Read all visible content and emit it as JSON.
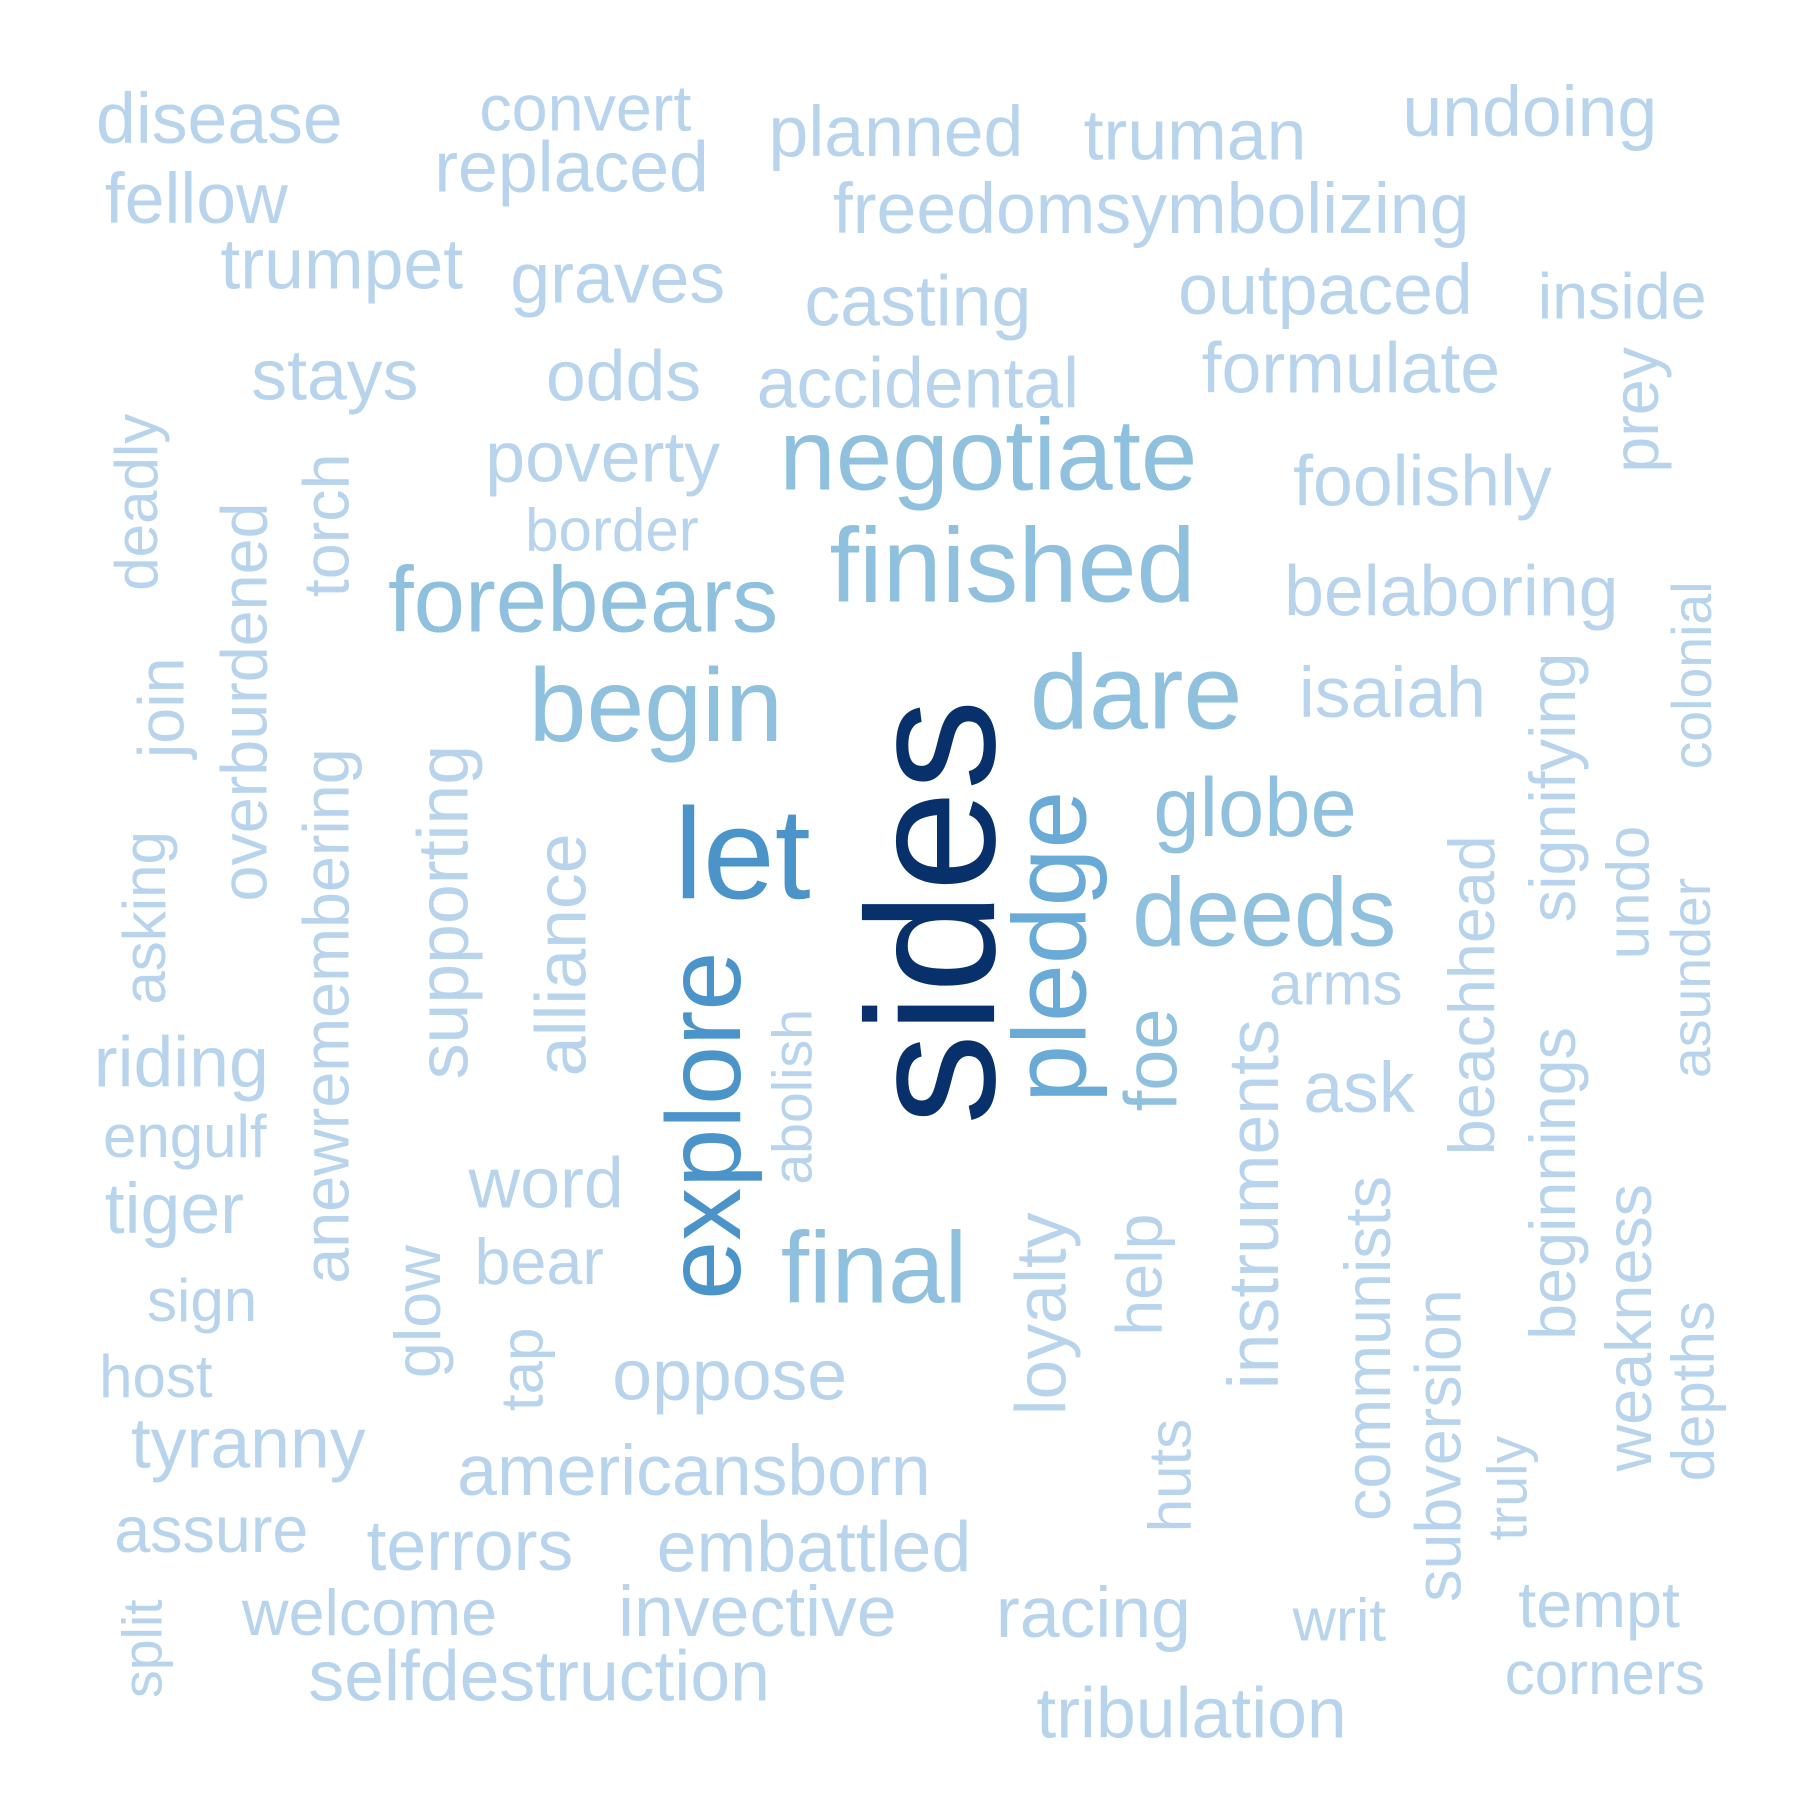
{
  "colors": {
    "darkest": "#08306b",
    "dark": "#4b94c9",
    "medium": "#6aaad6",
    "mediumlight": "#8fc0dd",
    "light": "#b8d4ec",
    "background": "#ffffff"
  },
  "words": [
    {
      "text": "sides",
      "color": "darkest",
      "vertical": true
    },
    {
      "text": "let",
      "color": "dark"
    },
    {
      "text": "explore",
      "color": "dark",
      "vertical": true
    },
    {
      "text": "pledge",
      "color": "medium",
      "vertical": true
    },
    {
      "text": "negotiate",
      "color": "mediumlight"
    },
    {
      "text": "finished",
      "color": "mediumlight"
    },
    {
      "text": "forebears",
      "color": "mediumlight"
    },
    {
      "text": "begin",
      "color": "mediumlight"
    },
    {
      "text": "dare",
      "color": "mediumlight"
    },
    {
      "text": "globe",
      "color": "mediumlight"
    },
    {
      "text": "deeds",
      "color": "mediumlight"
    },
    {
      "text": "final",
      "color": "mediumlight"
    },
    {
      "text": "foe",
      "color": "mediumlight",
      "vertical": true
    },
    {
      "text": "disease",
      "color": "light"
    },
    {
      "text": "convert",
      "color": "light"
    },
    {
      "text": "planned",
      "color": "light"
    },
    {
      "text": "truman",
      "color": "light"
    },
    {
      "text": "undoing",
      "color": "light"
    },
    {
      "text": "fellow",
      "color": "light"
    },
    {
      "text": "replaced",
      "color": "light"
    },
    {
      "text": "freedomsymbolizing",
      "color": "light"
    },
    {
      "text": "trumpet",
      "color": "light"
    },
    {
      "text": "graves",
      "color": "light"
    },
    {
      "text": "casting",
      "color": "light"
    },
    {
      "text": "outpaced",
      "color": "light"
    },
    {
      "text": "inside",
      "color": "light"
    },
    {
      "text": "stays",
      "color": "light"
    },
    {
      "text": "odds",
      "color": "light"
    },
    {
      "text": "accidental",
      "color": "light"
    },
    {
      "text": "formulate",
      "color": "light"
    },
    {
      "text": "prey",
      "color": "light",
      "vertical": true
    },
    {
      "text": "poverty",
      "color": "light"
    },
    {
      "text": "foolishly",
      "color": "light"
    },
    {
      "text": "border",
      "color": "light"
    },
    {
      "text": "belaboring",
      "color": "light"
    },
    {
      "text": "deadly",
      "color": "light",
      "vertical": true
    },
    {
      "text": "overburdened",
      "color": "light",
      "vertical": true
    },
    {
      "text": "torch",
      "color": "light",
      "vertical": true
    },
    {
      "text": "colonial",
      "color": "light",
      "vertical": true
    },
    {
      "text": "isaiah",
      "color": "light"
    },
    {
      "text": "join",
      "color": "light",
      "vertical": true
    },
    {
      "text": "supporting",
      "color": "light",
      "vertical": true
    },
    {
      "text": "signifying",
      "color": "light",
      "vertical": true
    },
    {
      "text": "alliance",
      "color": "light",
      "vertical": true
    },
    {
      "text": "asking",
      "color": "light",
      "vertical": true
    },
    {
      "text": "beachhead",
      "color": "light",
      "vertical": true
    },
    {
      "text": "undo",
      "color": "light",
      "vertical": true
    },
    {
      "text": "arms",
      "color": "light"
    },
    {
      "text": "abolish",
      "color": "light",
      "vertical": true
    },
    {
      "text": "asunder",
      "color": "light",
      "vertical": true
    },
    {
      "text": "anewremembering",
      "color": "light",
      "vertical": true
    },
    {
      "text": "riding",
      "color": "light"
    },
    {
      "text": "instruments",
      "color": "light",
      "vertical": true
    },
    {
      "text": "ask",
      "color": "light"
    },
    {
      "text": "beginnings",
      "color": "light",
      "vertical": true
    },
    {
      "text": "engulf",
      "color": "light"
    },
    {
      "text": "word",
      "color": "light"
    },
    {
      "text": "weakness",
      "color": "light",
      "vertical": true
    },
    {
      "text": "tiger",
      "color": "light"
    },
    {
      "text": "loyalty",
      "color": "light",
      "vertical": true
    },
    {
      "text": "help",
      "color": "light",
      "vertical": true
    },
    {
      "text": "communists",
      "color": "light",
      "vertical": true
    },
    {
      "text": "glow",
      "color": "light",
      "vertical": true
    },
    {
      "text": "bear",
      "color": "light"
    },
    {
      "text": "sign",
      "color": "light"
    },
    {
      "text": "tap",
      "color": "light",
      "vertical": true
    },
    {
      "text": "depths",
      "color": "light",
      "vertical": true
    },
    {
      "text": "subversion",
      "color": "light",
      "vertical": true
    },
    {
      "text": "host",
      "color": "light"
    },
    {
      "text": "oppose",
      "color": "light"
    },
    {
      "text": "tyranny",
      "color": "light"
    },
    {
      "text": "americansborn",
      "color": "light"
    },
    {
      "text": "huts",
      "color": "light",
      "vertical": true
    },
    {
      "text": "truly",
      "color": "light",
      "vertical": true
    },
    {
      "text": "assure",
      "color": "light"
    },
    {
      "text": "terrors",
      "color": "light"
    },
    {
      "text": "embattled",
      "color": "light"
    },
    {
      "text": "split",
      "color": "light",
      "vertical": true
    },
    {
      "text": "tempt",
      "color": "light"
    },
    {
      "text": "welcome",
      "color": "light"
    },
    {
      "text": "invective",
      "color": "light"
    },
    {
      "text": "racing",
      "color": "light"
    },
    {
      "text": "writ",
      "color": "light"
    },
    {
      "text": "selfdestruction",
      "color": "light"
    },
    {
      "text": "corners",
      "color": "light"
    },
    {
      "text": "tribulation",
      "color": "light"
    }
  ]
}
